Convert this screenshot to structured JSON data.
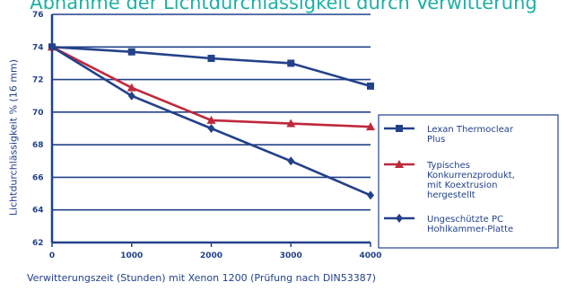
{
  "chart_data": {
    "type": "line",
    "title": "Abnahme der Lichtdurchlässigkeit durch Verwitterung",
    "xlabel": "Verwitterungszeit (Stunden) mit Xenon 1200 (Prüfung nach DIN53387)",
    "ylabel": "Lichtdurchlässigkeit % (16 mm)",
    "xlim": [
      0,
      4000
    ],
    "ylim": [
      62,
      76
    ],
    "xticks": [
      0,
      1000,
      2000,
      3000,
      4000
    ],
    "xtick_labels": [
      "0",
      "1000",
      "2000",
      "3000",
      "4000"
    ],
    "yticks": [
      62,
      64,
      66,
      68,
      70,
      72,
      74,
      76
    ],
    "ytick_labels": [
      "62",
      "64",
      "66",
      "68",
      "70",
      "72",
      "74",
      "76"
    ],
    "grid": "horizontal",
    "legend_position": "right",
    "series": [
      {
        "name": "Lexan Thermoclear Plus",
        "legend_lines": [
          "Lexan Thermoclear",
          "Plus"
        ],
        "color": "#23418a",
        "marker": "square",
        "x": [
          0,
          1000,
          2000,
          3000,
          4000
        ],
        "y": [
          74,
          73.7,
          73.3,
          73,
          71.6
        ]
      },
      {
        "name": "Typisches Konkurrenzprodukt, mit Koextrusion hergestellt",
        "legend_lines": [
          "Typisches",
          "Konkurrenzprodukt,",
          "mit Koextrusion",
          "hergestellt"
        ],
        "color": "#c0283a",
        "marker": "triangle",
        "x": [
          0,
          1000,
          2000,
          3000,
          4000
        ],
        "y": [
          74,
          71.5,
          69.5,
          69.3,
          69.1
        ]
      },
      {
        "name": "Ungeschützte PC Hohlkammer-Platte",
        "legend_lines": [
          "Ungeschützte PC",
          "Hohlkammer-Platte"
        ],
        "color": "#23418a",
        "marker": "diamond",
        "x": [
          0,
          1000,
          2000,
          3000,
          4000
        ],
        "y": [
          74,
          71,
          69,
          67,
          64.9
        ]
      }
    ]
  }
}
